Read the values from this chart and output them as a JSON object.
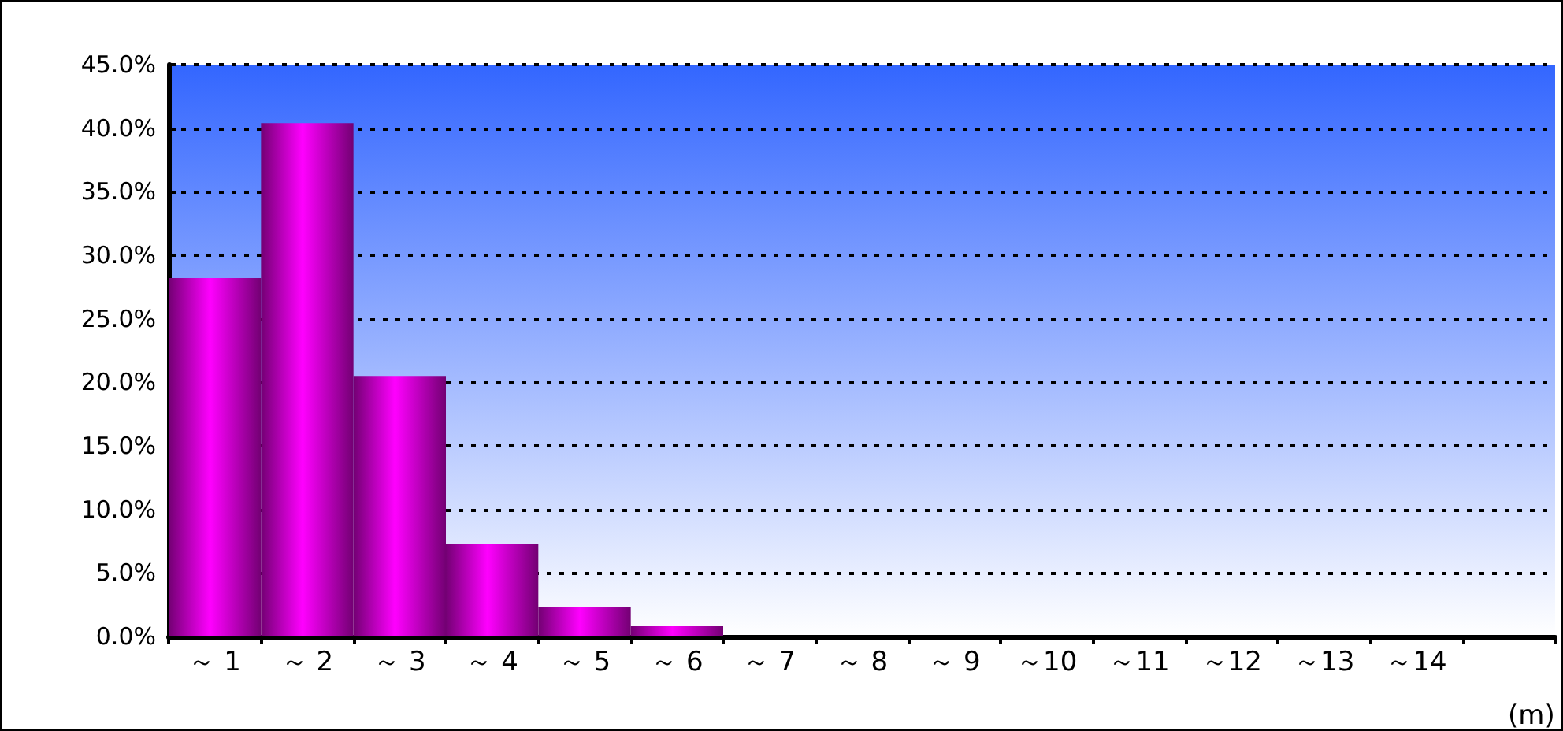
{
  "chart_data": {
    "type": "bar",
    "categories": [
      "～ 1",
      "～ 2",
      "～ 3",
      "～ 4",
      "～ 5",
      "～ 6",
      "～ 7",
      "～ 8",
      "～ 9",
      "～10",
      "～11",
      "～12",
      "～13",
      "～14",
      null
    ],
    "xlabel": "(m)",
    "values": [
      28.2,
      40.4,
      20.5,
      7.3,
      2.3,
      0.8,
      0,
      0,
      0,
      0,
      0,
      0,
      0,
      0,
      0
    ],
    "color": "#ff00ff",
    "ylim": [
      0,
      45
    ],
    "yticks": [
      {
        "value": 0,
        "label": "0.0%"
      },
      {
        "value": 5,
        "label": "5.0%"
      },
      {
        "value": 10,
        "label": "10.0%"
      },
      {
        "value": 15,
        "label": "15.0%"
      },
      {
        "value": 20,
        "label": "20.0%"
      },
      {
        "value": 25,
        "label": "25.0%"
      },
      {
        "value": 30,
        "label": "30.0%"
      },
      {
        "value": 35,
        "label": "35.0%"
      },
      {
        "value": 40,
        "label": "40.0%"
      },
      {
        "value": 45,
        "label": "45.0%"
      }
    ],
    "grid": "y",
    "line_style": "dotted"
  }
}
